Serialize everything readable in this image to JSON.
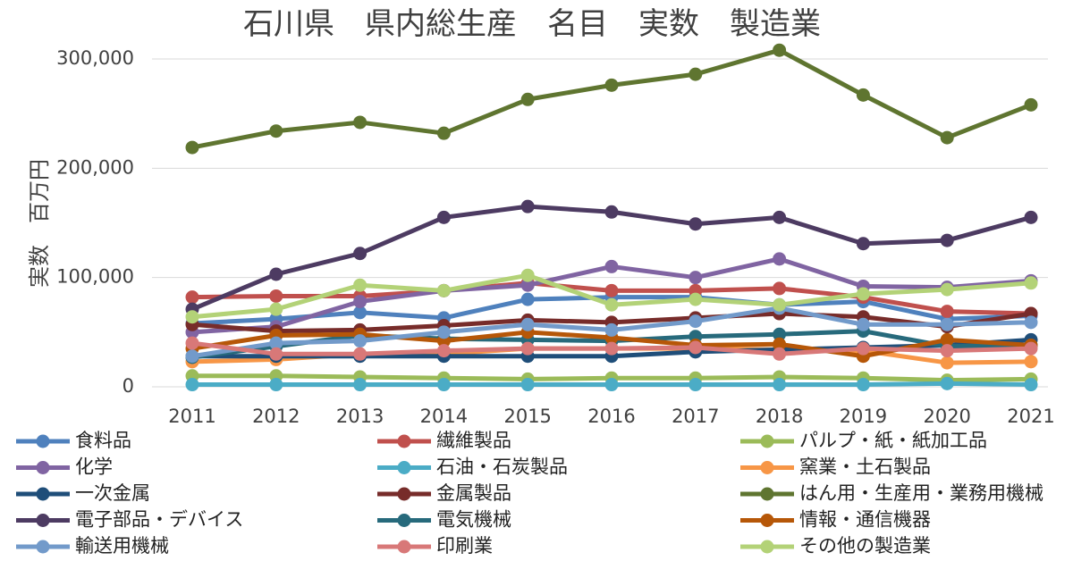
{
  "chart_data": {
    "type": "line",
    "title": "石川県　県内総生産　名目　実数　製造業",
    "xlabel": "",
    "ylabel": "実数　百万円",
    "x": [
      "2011",
      "2012",
      "2013",
      "2014",
      "2015",
      "2016",
      "2017",
      "2018",
      "2019",
      "2020",
      "2021"
    ],
    "ylim": [
      0,
      300000
    ],
    "yticks": [
      0,
      100000,
      200000,
      300000
    ],
    "ytick_labels": [
      "0",
      "100,000",
      "200,000",
      "300,000"
    ],
    "grid": true,
    "legend_position": "bottom",
    "series": [
      {
        "name": "食料品",
        "color": "#4F81BD",
        "values": [
          58000,
          62000,
          68000,
          63000,
          80000,
          82000,
          82000,
          75000,
          78000,
          62000,
          65000
        ]
      },
      {
        "name": "繊維製品",
        "color": "#C0504D",
        "values": [
          82000,
          83000,
          83000,
          88000,
          95000,
          88000,
          88000,
          90000,
          82000,
          69000,
          67000
        ]
      },
      {
        "name": "パルプ・紙・紙加工品",
        "color": "#9BBB59",
        "values": [
          10000,
          10000,
          9000,
          8000,
          7000,
          8000,
          8000,
          9000,
          8000,
          6000,
          7000
        ]
      },
      {
        "name": "化学",
        "color": "#8064A2",
        "values": [
          50000,
          55000,
          78000,
          88000,
          93000,
          110000,
          100000,
          117000,
          92000,
          91000,
          97000
        ]
      },
      {
        "name": "石油・石炭製品",
        "color": "#4BACC6",
        "values": [
          2000,
          2000,
          2000,
          2000,
          2000,
          2000,
          2000,
          2000,
          2000,
          3000,
          2000
        ]
      },
      {
        "name": "窯業・土石製品",
        "color": "#F79646",
        "values": [
          23000,
          25000,
          30000,
          30000,
          35000,
          35000,
          35000,
          34000,
          33000,
          22000,
          23000
        ]
      },
      {
        "name": "一次金属",
        "color": "#1F4E79",
        "values": [
          28000,
          28000,
          28000,
          28000,
          28000,
          28000,
          32000,
          34000,
          36000,
          38000,
          43000
        ]
      },
      {
        "name": "金属製品",
        "color": "#772C2A",
        "values": [
          57000,
          51000,
          52000,
          56000,
          61000,
          59000,
          63000,
          67000,
          64000,
          55000,
          67000
        ]
      },
      {
        "name": "はん用・生産用・業務用機械",
        "color": "#5F7530",
        "values": [
          219000,
          234000,
          242000,
          232000,
          263000,
          276000,
          286000,
          308000,
          267000,
          228000,
          258000
        ]
      },
      {
        "name": "電子部品・デバイス",
        "color": "#4D3B62",
        "values": [
          71000,
          103000,
          122000,
          155000,
          165000,
          160000,
          149000,
          155000,
          131000,
          134000,
          155000
        ]
      },
      {
        "name": "電気機械",
        "color": "#276A7C",
        "values": [
          27000,
          37000,
          47000,
          44000,
          43000,
          42000,
          46000,
          48000,
          51000,
          37000,
          38000
        ]
      },
      {
        "name": "情報・通信機器",
        "color": "#B65708",
        "values": [
          35000,
          47000,
          48000,
          42000,
          50000,
          45000,
          38000,
          39000,
          28000,
          43000,
          38000
        ]
      },
      {
        "name": "輸送用機械",
        "color": "#729ACA",
        "values": [
          28000,
          40000,
          42000,
          50000,
          57000,
          52000,
          60000,
          72000,
          57000,
          57000,
          59000
        ]
      },
      {
        "name": "印刷業",
        "color": "#D87878",
        "values": [
          40000,
          30000,
          30000,
          33000,
          35000,
          35000,
          36000,
          30000,
          35000,
          33000,
          35000
        ]
      },
      {
        "name": "その他の製造業",
        "color": "#B3D277",
        "values": [
          64000,
          71000,
          93000,
          88000,
          102000,
          75000,
          80000,
          75000,
          85000,
          89000,
          95000
        ]
      }
    ]
  }
}
